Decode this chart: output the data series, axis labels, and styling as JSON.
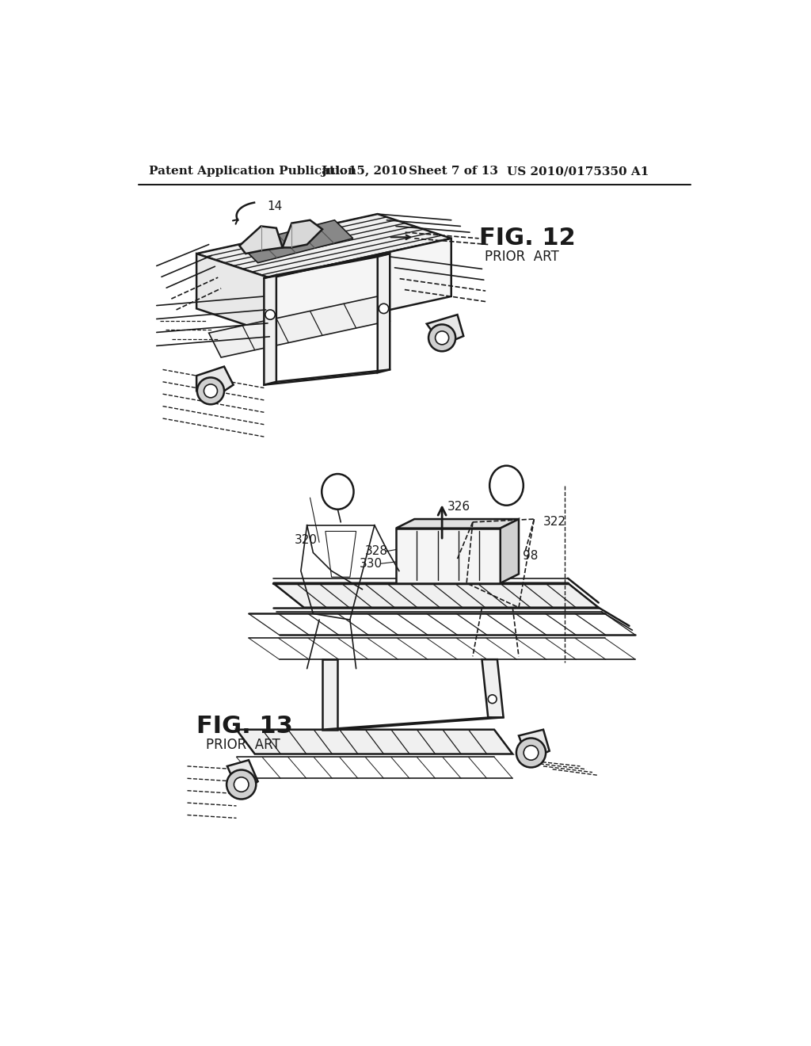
{
  "background_color": "#ffffff",
  "header_text": "Patent Application Publication",
  "header_date": "Jul. 15, 2010",
  "header_sheet": "Sheet 7 of 13",
  "header_patent": "US 2010/0175350 A1",
  "fig12_label": "FIG. 12",
  "fig12_sub": "PRIOR  ART",
  "fig13_label": "FIG. 13",
  "fig13_sub": "PRIOR  ART",
  "label_14": "14",
  "label_320": "320",
  "label_322": "322",
  "label_326": "326",
  "label_328": "328",
  "label_330": "330",
  "label_98": "98",
  "header_fontsize": 11,
  "fig_label_fontsize": 20,
  "fig_sub_fontsize": 12,
  "annotation_fontsize": 11,
  "line_color": "#1a1a1a"
}
